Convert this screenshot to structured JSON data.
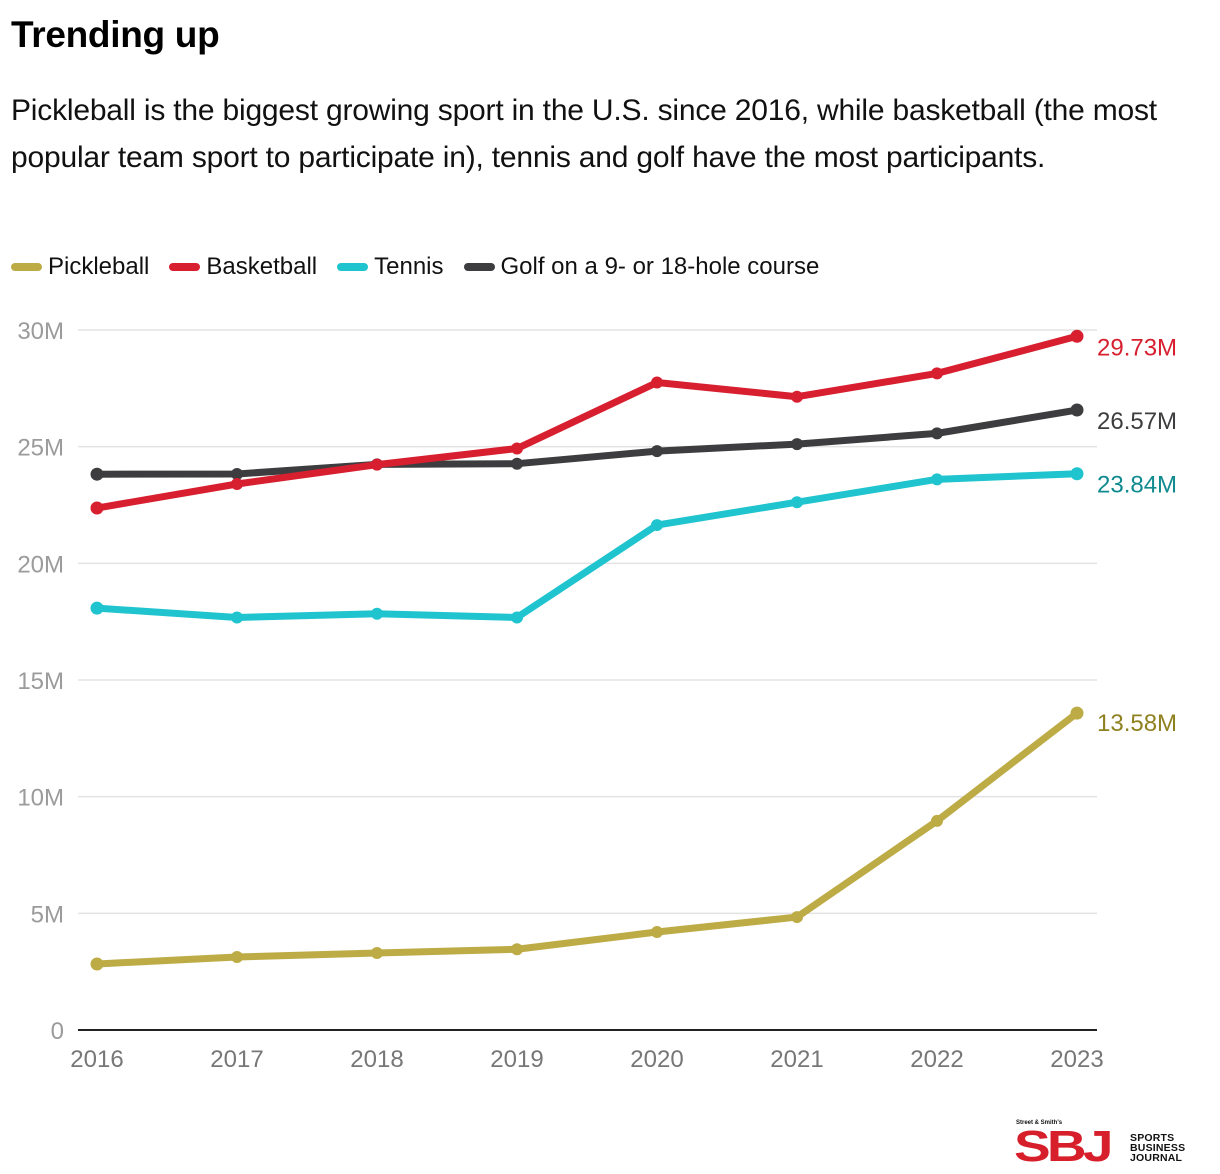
{
  "header": {
    "title": "Trending up",
    "subtitle": "Pickleball is the biggest growing sport in the U.S. since 2016, while basketball (the most popular team sport to participate in), tennis and golf have the most participants."
  },
  "legend": [
    {
      "label": "Pickleball",
      "color": "#bdab45"
    },
    {
      "label": "Basketball",
      "color": "#d71f2f"
    },
    {
      "label": "Tennis",
      "color": "#1fc4cf"
    },
    {
      "label": "Golf on a 9- or 18-hole course",
      "color": "#3d3d3f"
    }
  ],
  "logo": {
    "small_text": "Street & Smith's",
    "mark": "SBJ",
    "words": [
      "SPORTS",
      "BUSINESS",
      "JOURNAL"
    ],
    "color": "#d71f2b"
  },
  "chart_data": {
    "type": "line",
    "title": "Trending up",
    "xlabel": "",
    "ylabel": "",
    "x": [
      "2016",
      "2017",
      "2018",
      "2019",
      "2020",
      "2021",
      "2022",
      "2023"
    ],
    "ylim": [
      0,
      30
    ],
    "yticks": [
      0,
      5,
      10,
      15,
      20,
      25,
      30
    ],
    "ytick_labels": [
      "0",
      "5M",
      "10M",
      "15M",
      "20M",
      "25M",
      "30M"
    ],
    "grid": true,
    "legend_position": "top-left",
    "units": "millions of participants",
    "series": [
      {
        "name": "Pickleball",
        "color": "#bdab45",
        "label_color": "#8f8120",
        "values": [
          2.83,
          3.13,
          3.3,
          3.46,
          4.2,
          4.84,
          8.96,
          13.58
        ],
        "end_label": "13.58M"
      },
      {
        "name": "Basketball",
        "color": "#d71f2f",
        "label_color": "#d71f2f",
        "values": [
          22.37,
          23.4,
          24.23,
          24.92,
          27.75,
          27.14,
          28.14,
          29.73
        ],
        "end_label": "29.73M"
      },
      {
        "name": "Tennis",
        "color": "#1fc4cf",
        "label_color": "#0f8a8e",
        "values": [
          18.08,
          17.68,
          17.84,
          17.68,
          21.64,
          22.62,
          23.6,
          23.84
        ],
        "end_label": "23.84M"
      },
      {
        "name": "Golf on a 9- or 18-hole course",
        "color": "#3d3d3f",
        "label_color": "#3d3d3f",
        "values": [
          23.82,
          23.83,
          24.24,
          24.27,
          24.81,
          25.11,
          25.57,
          26.57
        ],
        "end_label": "26.57M"
      }
    ]
  }
}
